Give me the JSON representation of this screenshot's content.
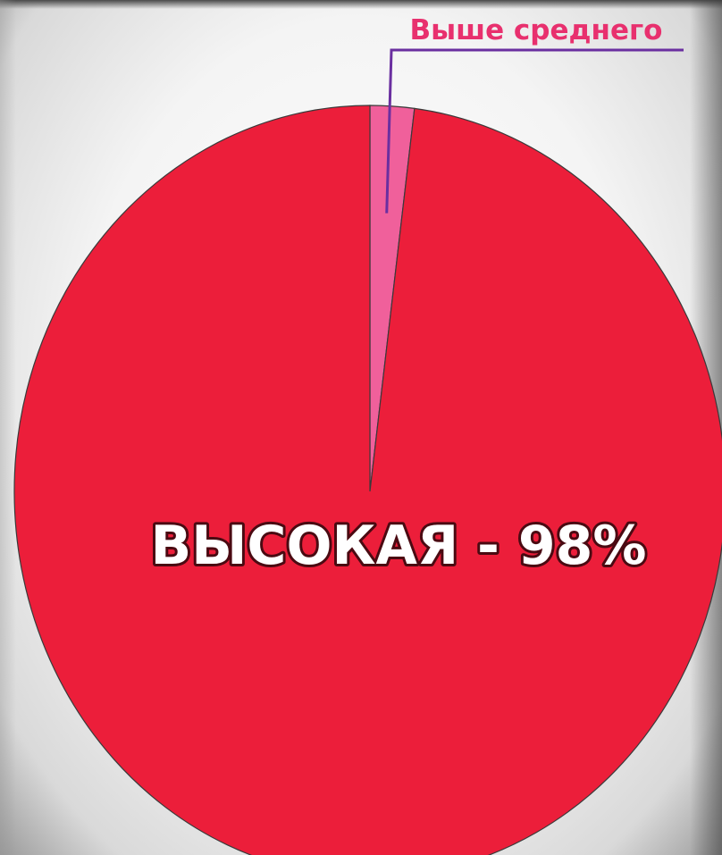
{
  "chart_data": {
    "type": "pie",
    "slices": [
      {
        "label": "ВЫСОКАЯ",
        "value": 98,
        "color": "#ec1e3a",
        "display_label": "ВЫСОКАЯ - 98%"
      },
      {
        "label": "Выше среднего",
        "value": 2,
        "color": "#f0609b",
        "display_label": "Выше среднего"
      }
    ],
    "title": "",
    "legend": "none",
    "label_style": {
      "main_fill": "#ffffff",
      "main_stroke": "#4a0a12",
      "callout_fill": "#e8306e",
      "callout_line": "#6a2fa0"
    }
  }
}
